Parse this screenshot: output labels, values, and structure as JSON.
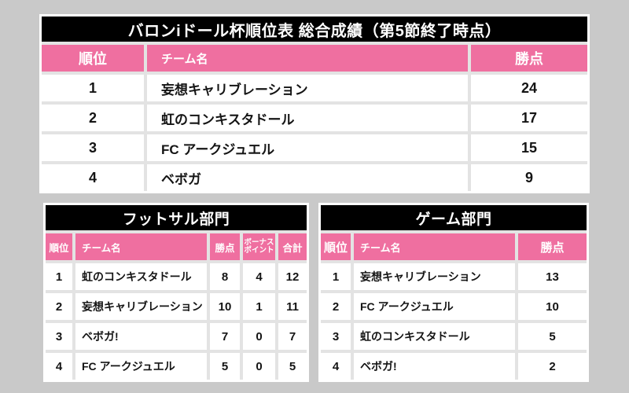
{
  "colors": {
    "page_background": "#c9c9c9",
    "title_bar": "#000000",
    "header_pink": "#ef6fa0",
    "cell_white": "#ffffff",
    "grid_gap": "#e3e3e3",
    "text": "#141414"
  },
  "overall": {
    "title": "バロンiドール杯順位表 総合成績（第5節終了時点）",
    "headers": {
      "rank": "順位",
      "team": "チーム名",
      "points": "勝点"
    },
    "rows": [
      {
        "rank": "1",
        "team": "妄想キャリブレーション",
        "points": "24"
      },
      {
        "rank": "2",
        "team": "虹のコンキスタドール",
        "points": "17"
      },
      {
        "rank": "3",
        "team": "FC アークジュエル",
        "points": "15"
      },
      {
        "rank": "4",
        "team": "ベボガ",
        "points": "9"
      }
    ]
  },
  "futsal": {
    "title": "フットサル部門",
    "headers": {
      "rank": "順位",
      "team": "チーム名",
      "points": "勝点",
      "bonus_line1": "ボーナス",
      "bonus_line2": "ポイント",
      "total": "合計"
    },
    "rows": [
      {
        "rank": "1",
        "team": "虹のコンキスタドール",
        "points": "8",
        "bonus": "4",
        "total": "12"
      },
      {
        "rank": "2",
        "team": "妄想キャリブレーション",
        "points": "10",
        "bonus": "1",
        "total": "11"
      },
      {
        "rank": "3",
        "team": "ベボガ!",
        "points": "7",
        "bonus": "0",
        "total": "7"
      },
      {
        "rank": "4",
        "team": "FC アークジュエル",
        "points": "5",
        "bonus": "0",
        "total": "5"
      }
    ]
  },
  "game": {
    "title": "ゲーム部門",
    "headers": {
      "rank": "順位",
      "team": "チーム名",
      "points": "勝点"
    },
    "rows": [
      {
        "rank": "1",
        "team": "妄想キャリブレーション",
        "points": "13"
      },
      {
        "rank": "2",
        "team": "FC アークジュエル",
        "points": "10"
      },
      {
        "rank": "3",
        "team": "虹のコンキスタドール",
        "points": "5"
      },
      {
        "rank": "4",
        "team": "ベボガ!",
        "points": "2"
      }
    ]
  },
  "chart_data": [
    {
      "type": "table",
      "title": "バロンiドール杯順位表 総合成績（第5節終了時点）",
      "columns": [
        "順位",
        "チーム名",
        "勝点"
      ],
      "rows": [
        [
          "1",
          "妄想キャリブレーション",
          "24"
        ],
        [
          "2",
          "虹のコンキスタドール",
          "17"
        ],
        [
          "3",
          "FC アークジュエル",
          "15"
        ],
        [
          "4",
          "ベボガ",
          "9"
        ]
      ]
    },
    {
      "type": "table",
      "title": "フットサル部門",
      "columns": [
        "順位",
        "チーム名",
        "勝点",
        "ボーナスポイント",
        "合計"
      ],
      "rows": [
        [
          "1",
          "虹のコンキスタドール",
          "8",
          "4",
          "12"
        ],
        [
          "2",
          "妄想キャリブレーション",
          "10",
          "1",
          "11"
        ],
        [
          "3",
          "ベボガ!",
          "7",
          "0",
          "7"
        ],
        [
          "4",
          "FC アークジュエル",
          "5",
          "0",
          "5"
        ]
      ]
    },
    {
      "type": "table",
      "title": "ゲーム部門",
      "columns": [
        "順位",
        "チーム名",
        "勝点"
      ],
      "rows": [
        [
          "1",
          "妄想キャリブレーション",
          "13"
        ],
        [
          "2",
          "FC アークジュエル",
          "10"
        ],
        [
          "3",
          "虹のコンキスタドール",
          "5"
        ],
        [
          "4",
          "ベボガ!",
          "2"
        ]
      ]
    }
  ]
}
